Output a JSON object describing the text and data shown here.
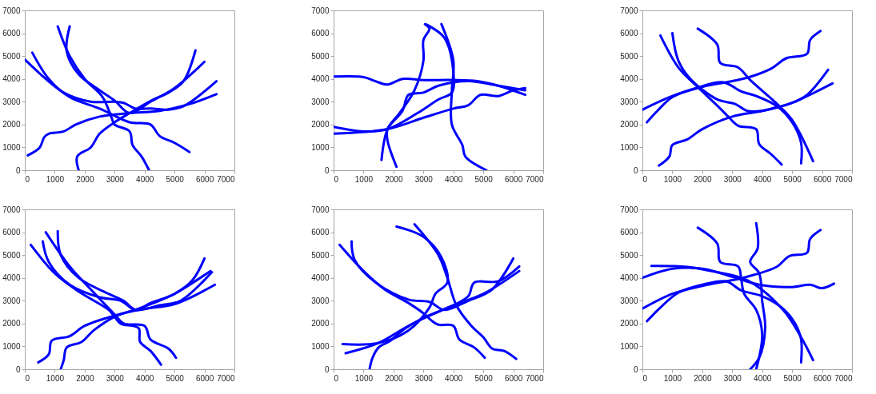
{
  "chart_data": [
    {
      "type": "line",
      "xlim": [
        0,
        7000
      ],
      "ylim": [
        0,
        7000
      ],
      "xticks": [
        0,
        1000,
        2000,
        3000,
        4000,
        5000,
        6000,
        7000
      ],
      "yticks": [
        0,
        1000,
        2000,
        3000,
        4000,
        5000,
        6000,
        7000
      ],
      "grid": false,
      "legend": false,
      "line_style": "solid",
      "series": [
        {
          "color": "#0000ff",
          "x": [
            100,
            500,
            650,
            800,
            1300,
            1700,
            2500,
            3500,
            4500,
            5500,
            6400
          ],
          "values": [
            650,
            1000,
            1450,
            1600,
            1700,
            2000,
            2350,
            2500,
            2600,
            2900,
            3330
          ]
        },
        {
          "color": "#0000ff",
          "x": [
            1800,
            1750,
            2200,
            2500,
            3000,
            3500,
            4300,
            4800,
            5300,
            5700
          ],
          "values": [
            0,
            600,
            1000,
            1600,
            2100,
            2500,
            3100,
            3400,
            3900,
            5250
          ]
        },
        {
          "color": "#0000ff",
          "x": [
            0,
            1300,
            2200,
            3000,
            3300,
            3700,
            4200,
            4800,
            5300,
            6400
          ],
          "values": [
            4850,
            3400,
            3000,
            3000,
            2950,
            2700,
            2700,
            2650,
            2800,
            3900
          ]
        },
        {
          "color": "#0000ff",
          "x": [
            250,
            800,
            1500,
            2500,
            3500,
            4200,
            4500,
            5000,
            5500
          ],
          "values": [
            5150,
            4000,
            3200,
            2700,
            2100,
            2000,
            1500,
            1200,
            800
          ]
        },
        {
          "color": "#0000ff",
          "x": [
            1100,
            1500,
            2000,
            2600,
            2900,
            3000,
            3500,
            3600,
            3900,
            4150
          ],
          "values": [
            6300,
            5000,
            4000,
            3200,
            2300,
            2000,
            1700,
            1100,
            600,
            0
          ]
        },
        {
          "color": "#0000ff",
          "x": [
            1500,
            1400,
            1800,
            2500,
            3000,
            3500,
            4200,
            5000,
            6000
          ],
          "values": [
            6300,
            5200,
            4200,
            3500,
            3050,
            2500,
            3000,
            3600,
            4750
          ]
        }
      ]
    },
    {
      "type": "line",
      "xlim": [
        0,
        7000
      ],
      "ylim": [
        0,
        7000
      ],
      "xticks": [
        0,
        1000,
        2000,
        3000,
        4000,
        5000,
        6000,
        7000
      ],
      "yticks": [
        0,
        1000,
        2000,
        3000,
        4000,
        5000,
        6000,
        7000
      ],
      "grid": false,
      "legend": false,
      "line_style": "solid",
      "series": [
        {
          "color": "#0000ff",
          "x": [
            0,
            1000,
            1400,
            1800,
            2300,
            3000,
            4000,
            4800,
            5500,
            6400
          ],
          "values": [
            4100,
            4080,
            3900,
            3750,
            4000,
            3950,
            3950,
            3900,
            3700,
            3300
          ]
        },
        {
          "color": "#0000ff",
          "x": [
            1600,
            1800,
            2200,
            2700,
            3000,
            3000,
            3200,
            3050,
            3700,
            4000,
            3950,
            3500,
            2800,
            1800,
            1000,
            0
          ],
          "values": [
            450,
            1800,
            2500,
            3500,
            4800,
            5700,
            6200,
            6400,
            5800,
            4300,
            3400,
            3100,
            2500,
            1800,
            1700,
            1900
          ]
        },
        {
          "color": "#0000ff",
          "x": [
            3600,
            4000,
            3950,
            3950,
            4300,
            4400,
            5100
          ],
          "values": [
            6400,
            4800,
            3500,
            2000,
            1100,
            600,
            0
          ]
        },
        {
          "color": "#0000ff",
          "x": [
            2100,
            1800,
            1800,
            2300,
            2500,
            3000,
            3500,
            4500,
            5500,
            6400
          ],
          "values": [
            150,
            1300,
            1800,
            2600,
            3300,
            3400,
            3700,
            3900,
            3700,
            3500
          ]
        },
        {
          "color": "#0000ff",
          "x": [
            0,
            1800,
            3000,
            4000,
            4500,
            4900,
            5500,
            6000,
            6400
          ],
          "values": [
            1600,
            1800,
            2300,
            2700,
            2850,
            3300,
            3250,
            3500,
            3600
          ]
        }
      ]
    },
    {
      "type": "line",
      "xlim": [
        0,
        7000
      ],
      "ylim": [
        0,
        7000
      ],
      "xticks": [
        0,
        1000,
        2000,
        3000,
        4000,
        5000,
        6000,
        7000
      ],
      "yticks": [
        0,
        1000,
        2000,
        3000,
        4000,
        5000,
        6000,
        7000
      ],
      "grid": false,
      "legend": false,
      "line_style": "solid",
      "series": [
        {
          "color": "#0000ff",
          "x": [
            0,
            1000,
            2000,
            3000,
            3500,
            4300,
            4800,
            5500,
            5600,
            5950
          ],
          "values": [
            2650,
            3250,
            3650,
            3900,
            4050,
            4450,
            4900,
            5100,
            5700,
            6100
          ]
        },
        {
          "color": "#0000ff",
          "x": [
            150,
            500,
            1000,
            1800,
            2700,
            3300,
            3800,
            4500,
            5000,
            5300,
            5300
          ],
          "values": [
            2100,
            2600,
            3200,
            3600,
            3850,
            3450,
            3250,
            2800,
            2100,
            1200,
            300
          ]
        },
        {
          "color": "#0000ff",
          "x": [
            550,
            900,
            1000,
            1500,
            2000,
            3000,
            4000,
            5000,
            5500,
            6200
          ],
          "values": [
            200,
            600,
            1100,
            1350,
            1800,
            2350,
            2600,
            2950,
            3300,
            4400
          ]
        },
        {
          "color": "#0000ff",
          "x": [
            600,
            1200,
            1800,
            2600,
            2900,
            3200,
            3800,
            3900,
            4300,
            4650
          ],
          "values": [
            5900,
            4500,
            3700,
            2700,
            2300,
            1950,
            1800,
            1150,
            700,
            250
          ]
        },
        {
          "color": "#0000ff",
          "x": [
            1000,
            1200,
            1600,
            2500,
            3100,
            3500,
            4000,
            4500,
            5000,
            6350
          ],
          "values": [
            6000,
            4800,
            4000,
            3100,
            2900,
            2600,
            2600,
            2750,
            2950,
            3800
          ]
        },
        {
          "color": "#0000ff",
          "x": [
            1850,
            2500,
            2600,
            3200,
            3600,
            4500,
            5000,
            5700
          ],
          "values": [
            6200,
            5500,
            4700,
            4500,
            3950,
            2900,
            2200,
            400
          ]
        }
      ]
    },
    {
      "type": "line",
      "xlim": [
        0,
        7000
      ],
      "ylim": [
        0,
        7000
      ],
      "xticks": [
        0,
        1000,
        2000,
        3000,
        4000,
        5000,
        6000,
        7000
      ],
      "yticks": [
        0,
        1000,
        2000,
        3000,
        4000,
        5000,
        6000,
        7000
      ],
      "grid": false,
      "legend": false,
      "line_style": "solid",
      "series": [
        {
          "color": "#0000ff",
          "x": [
            450,
            800,
            900,
            1500,
            2000,
            3000,
            4000,
            5000,
            6350
          ],
          "values": [
            300,
            650,
            1250,
            1450,
            1900,
            2350,
            2650,
            2850,
            3700
          ]
        },
        {
          "color": "#0000ff",
          "x": [
            1200,
            1300,
            1400,
            1900,
            2300,
            3000,
            3800,
            4300,
            5000,
            6200
          ],
          "values": [
            0,
            400,
            950,
            1200,
            1700,
            2300,
            2650,
            2900,
            3300,
            4300
          ]
        },
        {
          "color": "#0000ff",
          "x": [
            200,
            1000,
            1800,
            2800,
            3000,
            3200,
            3800,
            3850,
            4200,
            4550
          ],
          "values": [
            5450,
            4200,
            3400,
            2600,
            2300,
            2000,
            1800,
            1200,
            800,
            200
          ]
        },
        {
          "color": "#0000ff",
          "x": [
            600,
            800,
            1500,
            2500,
            3200,
            3700,
            4200,
            5000,
            5600,
            6000
          ],
          "values": [
            5600,
            4700,
            3700,
            3150,
            3000,
            2600,
            2900,
            3300,
            3900,
            4850
          ]
        },
        {
          "color": "#0000ff",
          "x": [
            700,
            1500,
            2200,
            3000,
            3300,
            4000,
            4200,
            4800,
            5050
          ],
          "values": [
            6000,
            4500,
            3500,
            2400,
            2000,
            1900,
            1300,
            900,
            500
          ]
        },
        {
          "color": "#0000ff",
          "x": [
            1100,
            1200,
            1800,
            2800,
            3300,
            3700,
            4500,
            5200,
            6250
          ],
          "values": [
            6050,
            5000,
            4000,
            3300,
            3000,
            2600,
            2800,
            3000,
            4250
          ]
        }
      ]
    },
    {
      "type": "line",
      "xlim": [
        0,
        7000
      ],
      "ylim": [
        0,
        7000
      ],
      "xticks": [
        0,
        1000,
        2000,
        3000,
        4000,
        5000,
        6000,
        7000
      ],
      "yticks": [
        0,
        1000,
        2000,
        3000,
        4000,
        5000,
        6000,
        7000
      ],
      "grid": false,
      "legend": false,
      "line_style": "solid",
      "series": [
        {
          "color": "#0000ff",
          "x": [
            200,
            1000,
            1700,
            2500,
            3000,
            3300,
            3500,
            4000,
            4200,
            4700,
            5050
          ],
          "values": [
            5450,
            4300,
            3500,
            2900,
            2450,
            2100,
            1950,
            1900,
            1300,
            950,
            500
          ]
        },
        {
          "color": "#0000ff",
          "x": [
            600,
            700,
            1400,
            2500,
            3200,
            3700,
            4500,
            5300,
            6000
          ],
          "values": [
            5600,
            4800,
            3800,
            3050,
            2950,
            2600,
            3000,
            3500,
            4850
          ]
        },
        {
          "color": "#0000ff",
          "x": [
            2100,
            3000,
            3600,
            3800,
            3400,
            3200,
            2500,
            1500,
            300
          ],
          "values": [
            6250,
            5800,
            4900,
            3800,
            3300,
            2700,
            1700,
            1150,
            1100
          ]
        },
        {
          "color": "#0000ff",
          "x": [
            2700,
            3500,
            3800,
            4100,
            4600,
            5000,
            5300,
            5700,
            6100
          ],
          "values": [
            6350,
            5000,
            4000,
            2800,
            1900,
            1400,
            900,
            800,
            450
          ]
        },
        {
          "color": "#0000ff",
          "x": [
            400,
            1500,
            2500,
            3300,
            4000,
            5000,
            6200
          ],
          "values": [
            700,
            1150,
            1900,
            2400,
            2800,
            3300,
            4300
          ]
        },
        {
          "color": "#0000ff",
          "x": [
            1200,
            1300,
            1500,
            1900,
            2300,
            3000,
            4000,
            4500,
            4700,
            5500,
            6200
          ],
          "values": [
            0,
            500,
            950,
            1250,
            1700,
            2250,
            2800,
            3200,
            3800,
            3850,
            4500
          ]
        }
      ]
    },
    {
      "type": "line",
      "xlim": [
        0,
        7000
      ],
      "ylim": [
        0,
        7000
      ],
      "xticks": [
        0,
        1000,
        2000,
        3000,
        4000,
        5000,
        6000,
        7000
      ],
      "yticks": [
        0,
        1000,
        2000,
        3000,
        4000,
        5000,
        6000,
        7000
      ],
      "grid": false,
      "legend": false,
      "line_style": "solid",
      "series": [
        {
          "color": "#0000ff",
          "x": [
            0,
            1000,
            2000,
            3000,
            3900,
            5000,
            5600,
            6000,
            6400
          ],
          "values": [
            4000,
            4400,
            4400,
            4050,
            3700,
            3600,
            3700,
            3550,
            3750
          ]
        },
        {
          "color": "#0000ff",
          "x": [
            300,
            1500,
            2300,
            3500,
            4700,
            5300,
            5700
          ],
          "values": [
            4520,
            4480,
            4300,
            3900,
            2600,
            1400,
            400
          ]
        },
        {
          "color": "#0000ff",
          "x": [
            0,
            1000,
            2000,
            3000,
            3500,
            4500,
            4900,
            5500,
            5600,
            5950
          ],
          "values": [
            2650,
            3300,
            3650,
            3900,
            4050,
            4500,
            4950,
            5100,
            5700,
            6100
          ]
        },
        {
          "color": "#0000ff",
          "x": [
            150,
            600,
            1200,
            2000,
            2800,
            3300,
            4000,
            4700,
            5100,
            5300,
            5300
          ],
          "values": [
            2100,
            2700,
            3350,
            3700,
            3850,
            3450,
            3200,
            2650,
            2000,
            1300,
            300
          ]
        },
        {
          "color": "#0000ff",
          "x": [
            1850,
            2500,
            2600,
            3200,
            3300,
            3400,
            3800,
            4000,
            3800
          ],
          "values": [
            6200,
            5500,
            4700,
            4500,
            3950,
            3300,
            2600,
            1500,
            0
          ]
        },
        {
          "color": "#0000ff",
          "x": [
            3800,
            3850,
            3600,
            3900,
            4000,
            4100,
            3900,
            3600
          ],
          "values": [
            6400,
            5300,
            4700,
            4200,
            3000,
            1800,
            500,
            0
          ]
        }
      ]
    }
  ]
}
